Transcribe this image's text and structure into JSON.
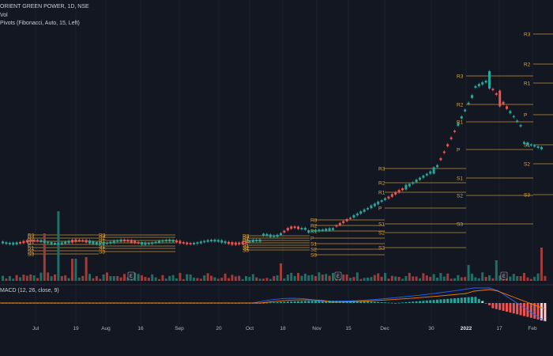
{
  "legend": {
    "symbol": "ORIENT GREEN POWER, 1D, NSE",
    "volume": "Vol",
    "pivots": "Pivots (Fibonacci, Auto, 15, Left)",
    "macd": "MACD (12, 26, close, 9)"
  },
  "x_axis": {
    "labels": [
      "Jul",
      "19",
      "Aug",
      "16",
      "Sep",
      "20",
      "Oct",
      "18",
      "Nov",
      "15",
      "Dec",
      "30",
      "2022",
      "17",
      "Feb"
    ],
    "bold_label": "2022"
  },
  "colors": {
    "background": "#131722",
    "up": "#26a69a",
    "down": "#ef5350",
    "up_volume": "#1f6f68",
    "down_volume": "#9e3b3b",
    "pivot": "#e0a53a",
    "macd_line": "#2962ff",
    "signal_line": "#f57c00"
  },
  "pivot_levels": {
    "period_1": [
      "R3",
      "R2",
      "R1",
      "P",
      "S1",
      "S2",
      "S3"
    ],
    "period_2": [
      "R3",
      "R2",
      "R1",
      "P",
      "S1",
      "S2",
      "S3"
    ],
    "period_3": [
      "R3",
      "R2",
      "R1",
      "P",
      "S1",
      "S2",
      "S3"
    ],
    "period_4": [
      "R3",
      "R2",
      "R1",
      "P",
      "S1",
      "S2",
      "S3"
    ],
    "period_5": [
      "R3",
      "R2",
      "R1",
      "P",
      "S1",
      "S2",
      "S3"
    ]
  },
  "event_badge": "E"
}
